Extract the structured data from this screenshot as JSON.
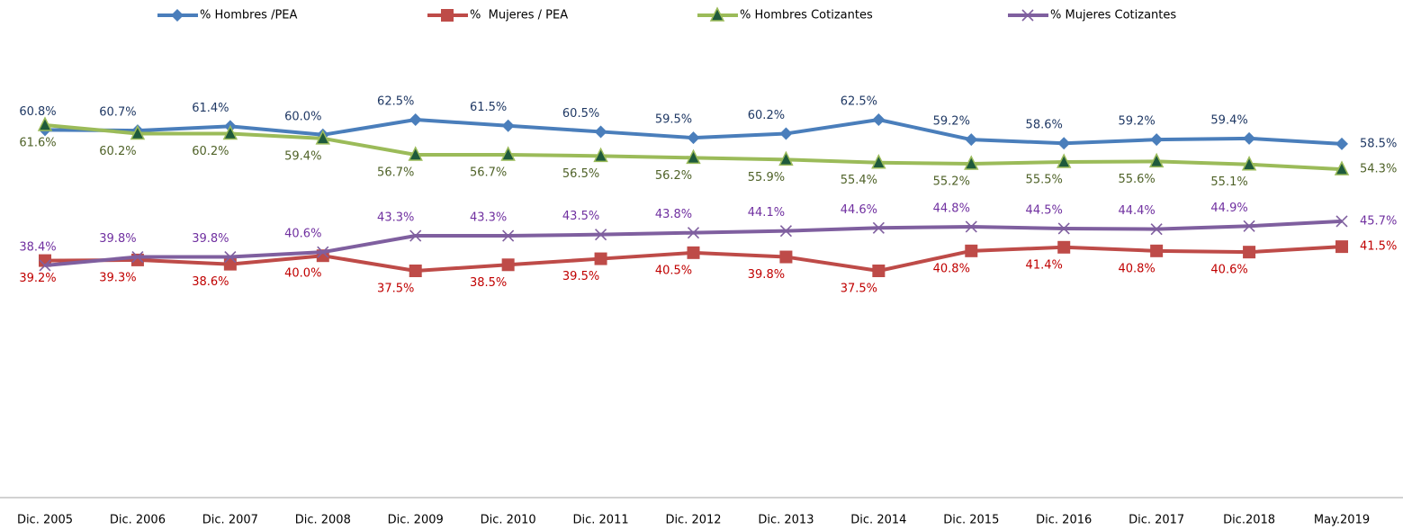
{
  "chart_data": {
    "type": "line",
    "categories": [
      "Dic. 2005",
      "Dic. 2006",
      "Dic. 2007",
      "Dic. 2008",
      "Dic. 2009",
      "Dic. 2010",
      "Dic. 2011",
      "Dic. 2012",
      "Dic. 2013",
      "Dic. 2014",
      "Dic. 2015",
      "Dic. 2016",
      "Dic. 2017",
      "Dic.2018",
      "May.2019"
    ],
    "ylim": [
      0,
      80
    ],
    "series": [
      {
        "name": "% Hombres /PEA",
        "color": "#4a7ebb",
        "marker": "diamond",
        "label_color": "#1f3864",
        "label_position": "above",
        "values": [
          60.8,
          60.7,
          61.4,
          60.0,
          62.5,
          61.5,
          60.5,
          59.5,
          60.2,
          62.5,
          59.2,
          58.6,
          59.2,
          59.4,
          58.5
        ],
        "value_labels": [
          "60.8%",
          "60.7%",
          "61.4%",
          "60.0%",
          "62.5%",
          "61.5%",
          "60.5%",
          "59.5%",
          "60.2%",
          "62.5%",
          "59.2%",
          "58.6%",
          "59.2%",
          "59.4%",
          "58.5%"
        ]
      },
      {
        "name": "%  Mujeres / PEA",
        "color": "#be4b48",
        "marker": "square",
        "label_color": "#c00000",
        "label_position": "below",
        "values": [
          39.2,
          39.3,
          38.6,
          40.0,
          37.5,
          38.5,
          39.5,
          40.5,
          39.8,
          37.5,
          40.8,
          41.4,
          40.8,
          40.6,
          41.5
        ],
        "value_labels": [
          "39.2%",
          "39.3%",
          "38.6%",
          "40.0%",
          "37.5%",
          "38.5%",
          "39.5%",
          "40.5%",
          "39.8%",
          "37.5%",
          "40.8%",
          "41.4%",
          "40.8%",
          "40.6%",
          "41.5%"
        ]
      },
      {
        "name": "% Hombres Cotizantes",
        "color": "#9bbb59",
        "marker": "triangle",
        "label_color": "#4f6228",
        "label_position": "below",
        "values": [
          61.6,
          60.2,
          60.2,
          59.4,
          56.7,
          56.7,
          56.5,
          56.2,
          55.9,
          55.4,
          55.2,
          55.5,
          55.6,
          55.1,
          54.3
        ],
        "value_labels": [
          "61.6%",
          "60.2%",
          "60.2%",
          "59.4%",
          "56.7%",
          "56.7%",
          "56.5%",
          "56.2%",
          "55.9%",
          "55.4%",
          "55.2%",
          "55.5%",
          "55.6%",
          "55.1%",
          "54.3%"
        ]
      },
      {
        "name": "% Mujeres Cotizantes",
        "color": "#7f5f9f",
        "marker": "x",
        "label_color": "#7030a0",
        "label_position": "above",
        "values": [
          38.4,
          39.8,
          39.8,
          40.6,
          43.3,
          43.3,
          43.5,
          43.8,
          44.1,
          44.6,
          44.8,
          44.5,
          44.4,
          44.9,
          45.7
        ],
        "value_labels": [
          "38.4%",
          "39.8%",
          "39.8%",
          "40.6%",
          "43.3%",
          "43.3%",
          "43.5%",
          "43.8%",
          "44.1%",
          "44.6%",
          "44.8%",
          "44.5%",
          "44.4%",
          "44.9%",
          "45.7%"
        ]
      }
    ]
  }
}
